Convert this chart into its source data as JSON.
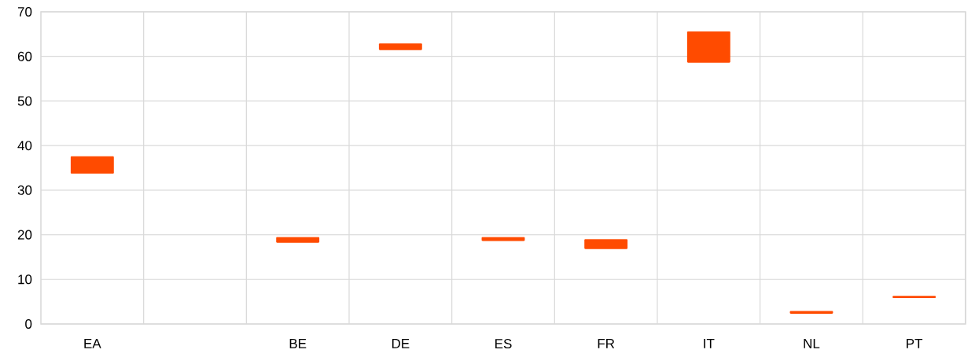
{
  "chart_data": {
    "type": "bar",
    "categories": [
      "EA",
      null,
      "BE",
      "DE",
      "ES",
      "FR",
      "IT",
      "NL",
      "PT"
    ],
    "base": [
      33.7,
      null,
      18.2,
      61.4,
      18.6,
      16.8,
      58.6,
      2.3,
      5.8
    ],
    "values": [
      3.9,
      null,
      1.3,
      1.5,
      0.9,
      2.2,
      7.0,
      0.6,
      0.5
    ],
    "color": "#ff4b00",
    "ylim": [
      0,
      70
    ],
    "yticks": [
      0,
      10,
      20,
      30,
      40,
      50,
      60,
      70
    ],
    "grid": true
  }
}
